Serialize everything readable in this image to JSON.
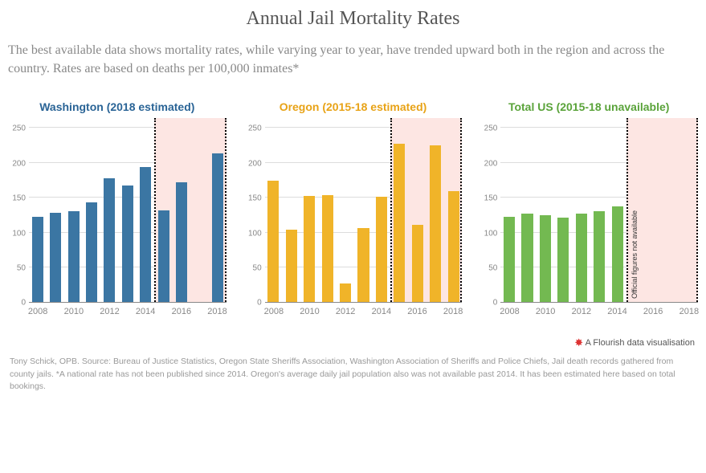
{
  "title": "Annual Jail Mortality Rates",
  "subtitle": "The best available data shows mortality rates, while varying year to year, have trended upward both in the region and across the country. Rates are based on deaths per 100,000 inmates*",
  "y_axis": {
    "min": 0,
    "max": 265,
    "ticks": [
      0,
      50,
      100,
      150,
      200,
      250
    ]
  },
  "x_labels": [
    "2008",
    "2010",
    "2012",
    "2014",
    "2016",
    "2018"
  ],
  "years": [
    "2008",
    "2009",
    "2010",
    "2011",
    "2012",
    "2013",
    "2014",
    "2015",
    "2016",
    "2017",
    "2018"
  ],
  "shade_label": "Official figures not available",
  "grid_color": "#dddddd",
  "panels": [
    {
      "key": "wa",
      "title": "Washington (2018 estimated)",
      "title_color": "#2a6496",
      "bar_color": "#3b76a3",
      "shade_start_index": 7,
      "shade_span": 4,
      "values": [
        123,
        128,
        131,
        143,
        178,
        168,
        194,
        132,
        172,
        null,
        214
      ]
    },
    {
      "key": "or",
      "title": "Oregon (2015-18 estimated)",
      "title_color": "#e8a317",
      "bar_color": "#f0b429",
      "shade_start_index": 7,
      "shade_span": 4,
      "values": [
        175,
        104,
        153,
        154,
        27,
        106,
        151,
        228,
        111,
        225,
        160
      ]
    },
    {
      "key": "us",
      "title": "Total US (2015-18 unavailable)",
      "title_color": "#5aa33a",
      "bar_color": "#73b951",
      "shade_start_index": 7,
      "shade_span": 4,
      "values": [
        123,
        127,
        125,
        122,
        127,
        131,
        138,
        null,
        null,
        null,
        null
      ]
    }
  ],
  "credit": "A Flourish data visualisation",
  "footer": "Tony Schick, OPB. Source: Bureau of Justice Statistics, Oregon State Sheriffs Association, Washington Association of Sheriffs and Police Chiefs, Jail death records gathered from county jails. *A national rate has not been published since 2014. Oregon's average daily jail population also was not available past 2014. It has been estimated here based on total bookings."
}
